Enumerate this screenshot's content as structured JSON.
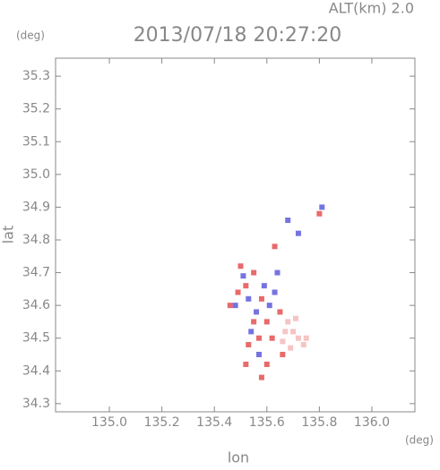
{
  "chart_data": {
    "type": "scatter",
    "title": "2013/07/18 20:27:20",
    "subtitle": "ALT(km) 2.0",
    "y_unit": "(deg)",
    "x_unit": "(deg)",
    "xlabel": "lon",
    "ylabel": "lat",
    "xlim": [
      134.795,
      136.164
    ],
    "ylim": [
      34.275,
      35.355
    ],
    "xticks": [
      {
        "value": 135,
        "label": "135.0"
      },
      135.2,
      135.4,
      135.6,
      135.8,
      {
        "value": 136,
        "label": "136.0"
      }
    ],
    "yticks": [
      34.3,
      34.4,
      34.5,
      34.6,
      34.7,
      34.8,
      34.9,
      {
        "value": 35,
        "label": "35.0"
      },
      35.1,
      35.2,
      35.3
    ],
    "series": [
      {
        "color": "#f6c4c4",
        "x": [
          135.68,
          135.7,
          135.72,
          135.74,
          135.69,
          135.67,
          135.71,
          135.75,
          135.66
        ],
        "y": [
          34.55,
          34.52,
          34.5,
          34.48,
          34.47,
          34.52,
          34.56,
          34.5,
          34.49
        ]
      },
      {
        "color": "#e86a6a",
        "x": [
          135.55,
          135.52,
          135.58,
          135.6,
          135.57,
          135.62,
          135.66,
          135.6,
          135.58,
          135.53,
          135.49,
          135.46,
          135.8,
          135.63,
          135.5,
          135.65,
          135.55,
          135.52
        ],
        "y": [
          34.7,
          34.66,
          34.62,
          34.55,
          34.5,
          34.5,
          34.45,
          34.42,
          34.38,
          34.48,
          34.64,
          34.6,
          34.88,
          34.78,
          34.72,
          34.58,
          34.55,
          34.42
        ]
      },
      {
        "color": "#7474e0",
        "x": [
          135.53,
          135.56,
          135.59,
          135.54,
          135.61,
          135.63,
          135.48,
          135.51,
          135.81,
          135.68,
          135.72,
          135.57,
          135.64
        ],
        "y": [
          34.62,
          34.58,
          34.66,
          34.52,
          34.6,
          34.64,
          34.6,
          34.69,
          34.9,
          34.86,
          34.82,
          34.45,
          34.7
        ]
      }
    ]
  }
}
